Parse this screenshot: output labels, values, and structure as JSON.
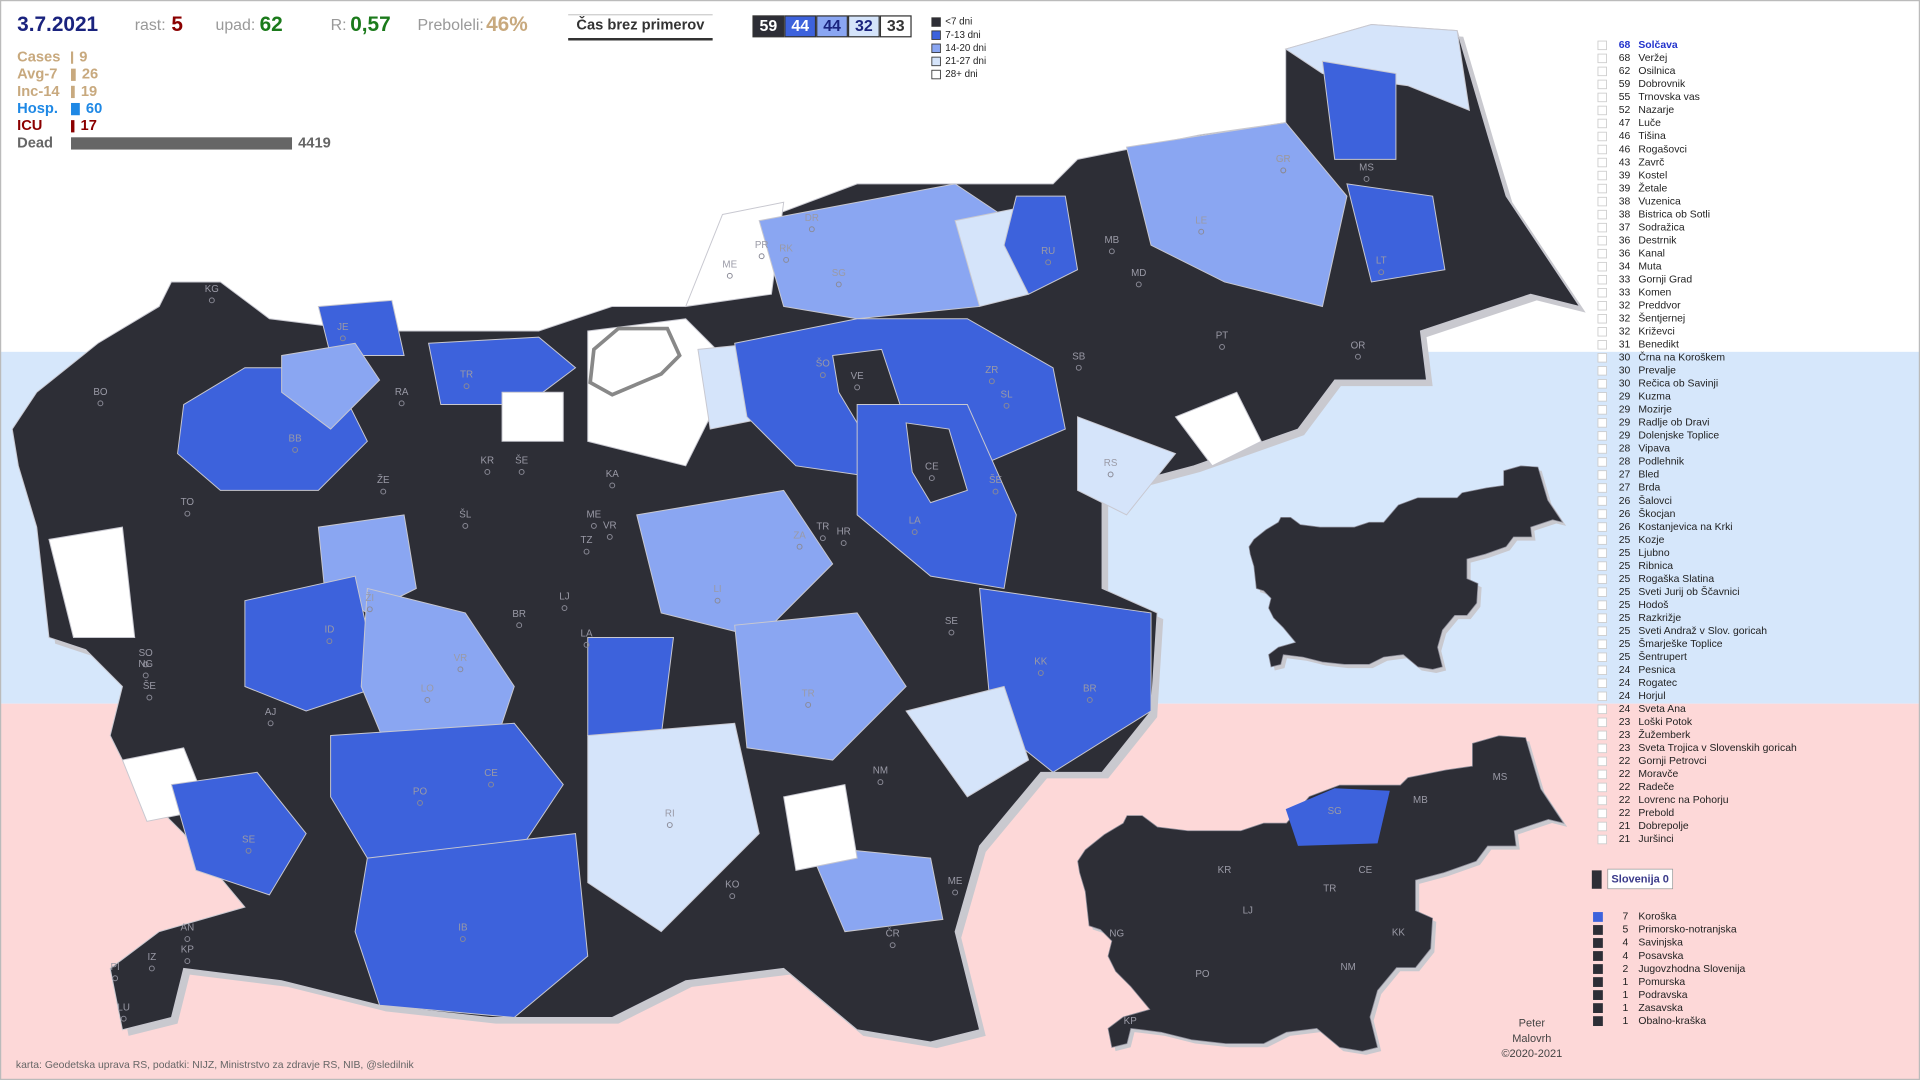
{
  "header": {
    "date": "3.7.2021",
    "stats": [
      {
        "label": "rast:",
        "value": "5"
      },
      {
        "label": "upad:",
        "value": "62"
      },
      {
        "label": "R:",
        "value": "0,57"
      },
      {
        "label": "Preboleli:",
        "value": "46%"
      }
    ],
    "button": "Čas brez primerov",
    "counts": [
      59,
      44,
      44,
      32,
      33
    ],
    "legend": [
      "<7 dni",
      "7-13 dni",
      "14-20 dni",
      "21-27 dni",
      "28+ dni"
    ]
  },
  "summary": [
    {
      "label": "Cases",
      "value": 9
    },
    {
      "label": "Avg-7",
      "value": 26
    },
    {
      "label": "Inc-14",
      "value": 19
    },
    {
      "label": "Hosp.",
      "value": 60
    },
    {
      "label": "ICU",
      "value": 17
    },
    {
      "label": "Dead",
      "value": 4419
    }
  ],
  "municipalities": [
    [
      68,
      "Solčava"
    ],
    [
      68,
      "Veržej"
    ],
    [
      62,
      "Osilnica"
    ],
    [
      59,
      "Dobrovnik"
    ],
    [
      55,
      "Trnovska vas"
    ],
    [
      52,
      "Nazarje"
    ],
    [
      47,
      "Luče"
    ],
    [
      46,
      "Tišina"
    ],
    [
      46,
      "Rogašovci"
    ],
    [
      43,
      "Zavrč"
    ],
    [
      39,
      "Kostel"
    ],
    [
      39,
      "Žetale"
    ],
    [
      38,
      "Vuzenica"
    ],
    [
      38,
      "Bistrica ob Sotli"
    ],
    [
      37,
      "Sodražica"
    ],
    [
      36,
      "Destrnik"
    ],
    [
      36,
      "Kanal"
    ],
    [
      34,
      "Muta"
    ],
    [
      33,
      "Gornji Grad"
    ],
    [
      33,
      "Komen"
    ],
    [
      32,
      "Preddvor"
    ],
    [
      32,
      "Šentjernej"
    ],
    [
      32,
      "Križevci"
    ],
    [
      31,
      "Benedikt"
    ],
    [
      30,
      "Črna na Koroškem"
    ],
    [
      30,
      "Prevalje"
    ],
    [
      30,
      "Rečica ob Savinji"
    ],
    [
      29,
      "Kuzma"
    ],
    [
      29,
      "Mozirje"
    ],
    [
      29,
      "Radlje ob Dravi"
    ],
    [
      29,
      "Dolenjske Toplice"
    ],
    [
      28,
      "Vipava"
    ],
    [
      28,
      "Podlehnik"
    ],
    [
      27,
      "Bled"
    ],
    [
      27,
      "Brda"
    ],
    [
      26,
      "Šalovci"
    ],
    [
      26,
      "Škocjan"
    ],
    [
      26,
      "Kostanjevica na Krki"
    ],
    [
      25,
      "Kozje"
    ],
    [
      25,
      "Ljubno"
    ],
    [
      25,
      "Ribnica"
    ],
    [
      25,
      "Rogaška Slatina"
    ],
    [
      25,
      "Sveti Jurij ob Ščavnici"
    ],
    [
      25,
      "Hodoš"
    ],
    [
      25,
      "Razkrižje"
    ],
    [
      25,
      "Sveti Andraž v Slov. goricah"
    ],
    [
      25,
      "Šmarješke Toplice"
    ],
    [
      25,
      "Šentrupert"
    ],
    [
      24,
      "Pesnica"
    ],
    [
      24,
      "Rogatec"
    ],
    [
      24,
      "Horjul"
    ],
    [
      24,
      "Sveta Ana"
    ],
    [
      23,
      "Loški Potok"
    ],
    [
      23,
      "Žužemberk"
    ],
    [
      23,
      "Sveta Trojica v Slovenskih goricah"
    ],
    [
      22,
      "Gornji Petrovci"
    ],
    [
      22,
      "Moravče"
    ],
    [
      22,
      "Radeče"
    ],
    [
      22,
      "Lovrenc na Pohorju"
    ],
    [
      22,
      "Prebold"
    ],
    [
      21,
      "Dobrepolje"
    ],
    [
      21,
      "Juršinci"
    ]
  ],
  "regions_title": "Slovenija 0",
  "regions": [
    [
      7,
      "Koroška"
    ],
    [
      5,
      "Primorsko-notranjska"
    ],
    [
      4,
      "Savinjska"
    ],
    [
      4,
      "Posavska"
    ],
    [
      2,
      "Jugovzhodna Slovenija"
    ],
    [
      1,
      "Pomurska"
    ],
    [
      1,
      "Podravska"
    ],
    [
      1,
      "Zasavska"
    ],
    [
      1,
      "Obalno-kraška"
    ]
  ],
  "map_labels": [
    "BO",
    "KG",
    "JE",
    "RA",
    "TR",
    "BB",
    "KR",
    "ŠE",
    "KA",
    "ŽE",
    "ŠL",
    "TO",
    "ME",
    "VR",
    "TZ",
    "ZA",
    "LJ",
    "BR",
    "LA",
    "ID",
    "VR",
    "LO",
    "SO",
    "NG",
    "ŠE",
    "AJ",
    "PO",
    "CE",
    "RI",
    "KO",
    "NM",
    "ME",
    "ČR",
    "IB",
    "SE",
    "AN",
    "KP",
    "IZ",
    "PI",
    "LU",
    "DR",
    "PR",
    "RK",
    "ME",
    "SG",
    "RU",
    "MB",
    "MD",
    "MS",
    "GR",
    "LE",
    "LT",
    "OR",
    "SB",
    "PT",
    "ŠO",
    "VE",
    "ZR",
    "SL",
    "CE",
    "RS",
    "ŠE",
    "TR",
    "HR",
    "LA",
    "LI",
    "SE",
    "KK",
    "BR",
    "TR",
    "ŽI",
    "GR"
  ],
  "small_map_labels": [
    "SG",
    "MB",
    "MS",
    "KR",
    "TR",
    "CE",
    "LJ",
    "NG",
    "KK",
    "PO",
    "NM",
    "KP"
  ],
  "credit": [
    "Peter",
    "Malovrh",
    "©2020-2021"
  ],
  "source": "karta: Geodetska uprava RS,  podatki: NIJZ, Ministrstvo za zdravje RS, NIB, @sledilnik"
}
